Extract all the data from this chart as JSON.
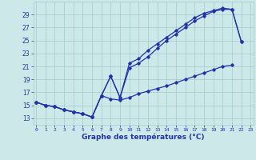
{
  "xlabel": "Graphe des températures (°C)",
  "background_color": "#cce8e8",
  "grid_color": "#aacece",
  "line_color": "#2233aa",
  "hours": [
    0,
    1,
    2,
    3,
    4,
    5,
    6,
    7,
    8,
    9,
    10,
    11,
    12,
    13,
    14,
    15,
    16,
    17,
    18,
    19,
    20,
    21,
    22,
    23
  ],
  "line1": [
    15.5,
    15.0,
    14.8,
    14.3,
    14.0,
    13.7,
    13.2,
    16.5,
    19.5,
    16.2,
    21.5,
    22.2,
    23.5,
    24.5,
    25.5,
    26.5,
    27.5,
    28.5,
    29.2,
    29.6,
    30.0,
    29.8,
    24.8,
    null
  ],
  "line2": [
    15.5,
    15.0,
    14.8,
    14.3,
    14.0,
    13.7,
    13.2,
    16.5,
    19.5,
    16.2,
    20.8,
    21.5,
    22.5,
    23.8,
    25.0,
    26.0,
    27.0,
    28.0,
    28.8,
    29.5,
    29.8,
    29.8,
    24.8,
    null
  ],
  "line3": [
    15.5,
    15.0,
    14.8,
    14.3,
    14.0,
    13.7,
    13.2,
    16.5,
    16.0,
    15.8,
    16.2,
    16.8,
    17.2,
    17.6,
    18.0,
    18.5,
    19.0,
    19.5,
    20.0,
    20.5,
    21.0,
    21.2,
    null,
    null
  ],
  "yticks": [
    13,
    15,
    17,
    19,
    21,
    23,
    25,
    27,
    29
  ],
  "xticks": [
    0,
    1,
    2,
    3,
    4,
    5,
    6,
    7,
    8,
    9,
    10,
    11,
    12,
    13,
    14,
    15,
    16,
    17,
    18,
    19,
    20,
    21,
    22,
    23
  ],
  "ylim": [
    12.0,
    31.0
  ],
  "xlim": [
    -0.3,
    23.3
  ]
}
